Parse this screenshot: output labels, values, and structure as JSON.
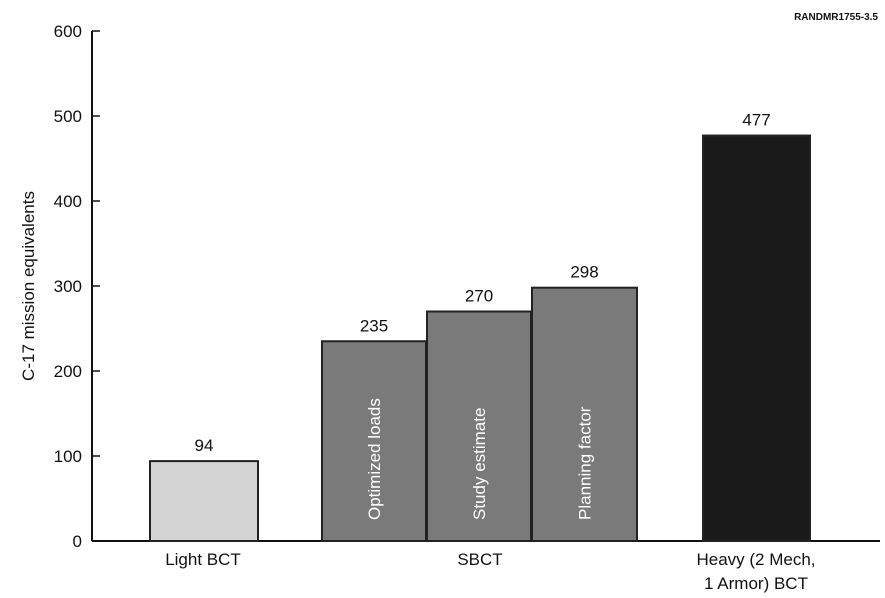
{
  "chart_data": {
    "type": "bar",
    "credit": "RANDMR1755-3.5",
    "ylabel": "C-17 mission equivalents",
    "ylim": [
      0,
      600
    ],
    "yticks": [
      0,
      100,
      200,
      300,
      400,
      500,
      600
    ],
    "categories": [
      {
        "label": "Light BCT",
        "bars": [
          {
            "value": 94,
            "fill": "#d4d4d4",
            "inner_label": ""
          }
        ]
      },
      {
        "label": "SBCT",
        "bars": [
          {
            "value": 235,
            "fill": "#7a7a7a",
            "inner_label": "Optimized loads"
          },
          {
            "value": 270,
            "fill": "#7a7a7a",
            "inner_label": "Study estimate"
          },
          {
            "value": 298,
            "fill": "#7a7a7a",
            "inner_label": "Planning factor"
          }
        ]
      },
      {
        "label": "Heavy (2 Mech,\n1 Armor) BCT",
        "bars": [
          {
            "value": 477,
            "fill": "#1a1a1a",
            "inner_label": ""
          }
        ]
      }
    ]
  }
}
